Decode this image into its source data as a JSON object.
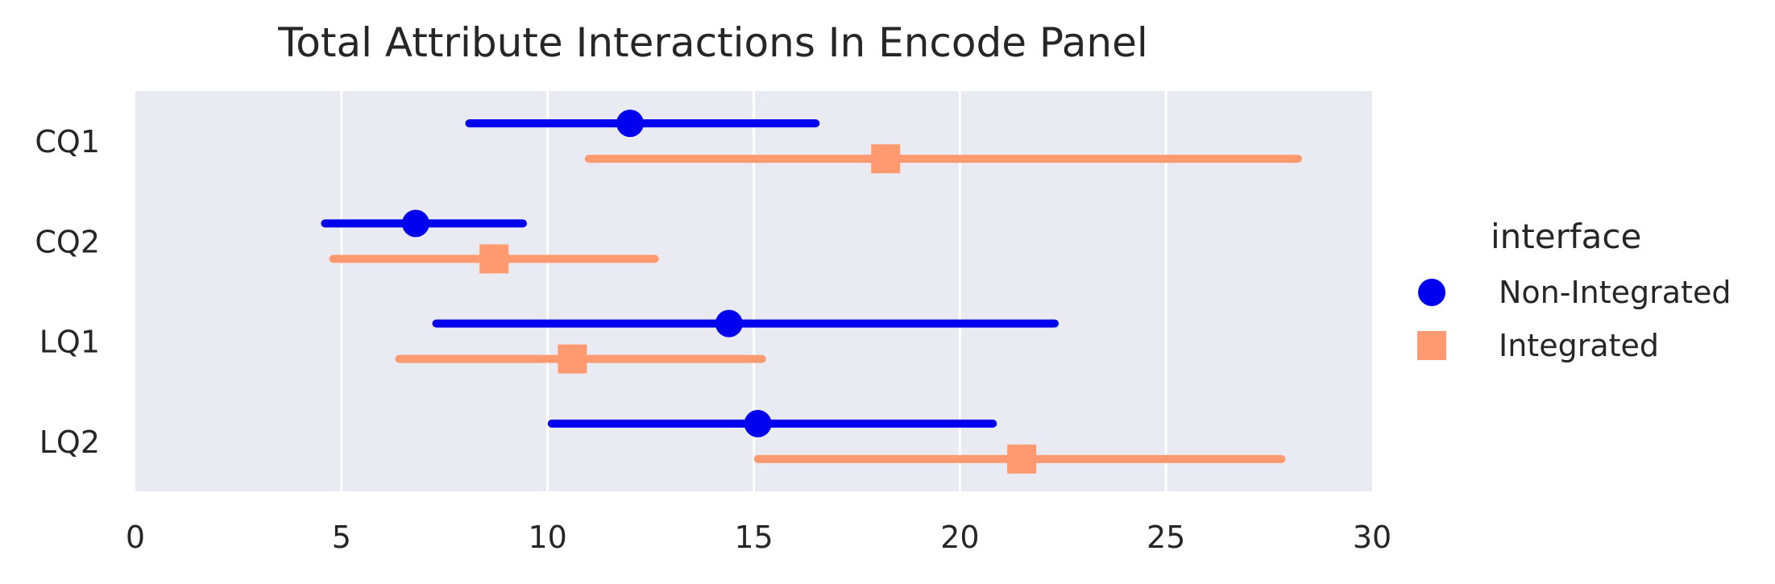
{
  "chart_data": {
    "type": "scatter",
    "title": "Total Attribute Interactions In Encode Panel",
    "xlabel": "",
    "ylabel": "",
    "xlim": [
      0,
      30
    ],
    "x_ticks": [
      "0",
      "5",
      "10",
      "15",
      "20",
      "25",
      "30"
    ],
    "categories": [
      "CQ1",
      "CQ2",
      "LQ1",
      "LQ2"
    ],
    "grid": "vertical",
    "legend_position": "right",
    "legend_title": "interface",
    "series": [
      {
        "name": "Non-Integrated",
        "color": "#0000ee",
        "marker": "circle",
        "values": [
          12.0,
          6.8,
          14.4,
          15.1
        ],
        "ci_low": [
          8.1,
          4.6,
          7.3,
          10.1
        ],
        "ci_high": [
          16.5,
          9.4,
          22.3,
          20.8
        ]
      },
      {
        "name": "Integrated",
        "color": "#ff9a70",
        "marker": "square",
        "values": [
          18.2,
          8.7,
          10.6,
          21.5
        ],
        "ci_low": [
          11.0,
          4.8,
          6.4,
          15.1
        ],
        "ci_high": [
          28.2,
          12.6,
          15.2,
          27.8
        ]
      }
    ]
  }
}
